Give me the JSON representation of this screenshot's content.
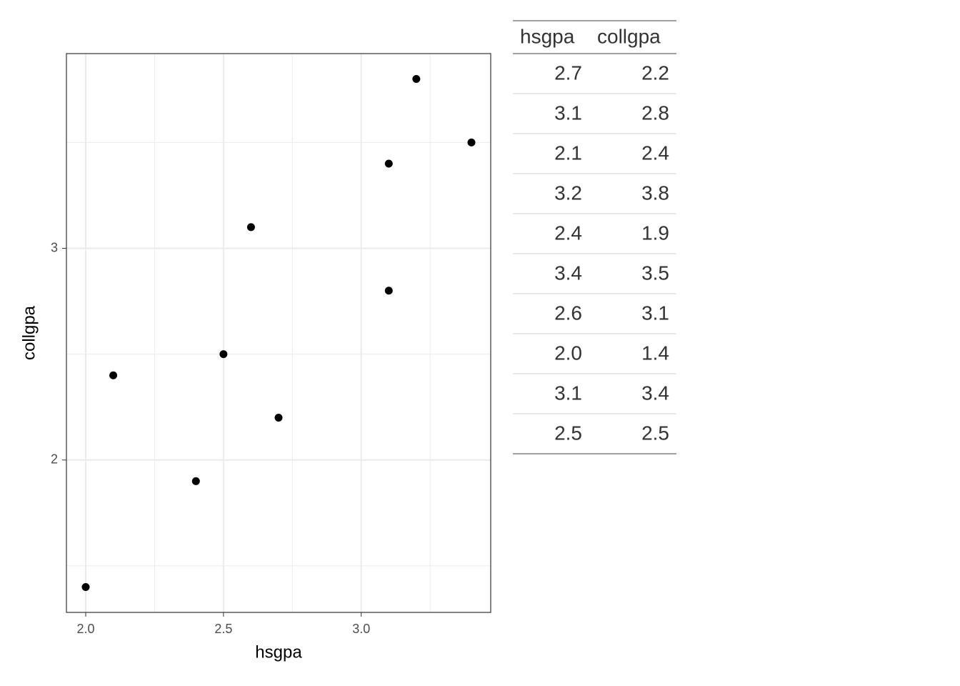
{
  "chart_data": {
    "type": "scatter",
    "x_label": "hsgpa",
    "y_label": "collgpa",
    "x": [
      2.7,
      3.1,
      2.1,
      3.2,
      2.4,
      3.4,
      2.6,
      2.0,
      3.1,
      2.5
    ],
    "y": [
      2.2,
      2.8,
      2.4,
      3.8,
      1.9,
      3.5,
      3.1,
      1.4,
      3.4,
      2.5
    ],
    "color": "#000000",
    "xlim": [
      1.93,
      3.47
    ],
    "ylim": [
      1.28,
      3.92
    ],
    "xticks": [
      {
        "value": 2,
        "label": "2.0"
      },
      {
        "value": 2.5,
        "label": "2.5"
      },
      {
        "value": 3,
        "label": "3.0"
      }
    ],
    "yticks": [
      2,
      3
    ],
    "grid": true
  },
  "table": {
    "columns": [
      "hsgpa",
      "collgpa"
    ],
    "rows": [
      [
        "2.7",
        "2.2"
      ],
      [
        "3.1",
        "2.8"
      ],
      [
        "2.1",
        "2.4"
      ],
      [
        "3.2",
        "3.8"
      ],
      [
        "2.4",
        "1.9"
      ],
      [
        "3.4",
        "3.5"
      ],
      [
        "2.6",
        "3.1"
      ],
      [
        "2.0",
        "1.4"
      ],
      [
        "3.1",
        "3.4"
      ],
      [
        "2.5",
        "2.5"
      ]
    ]
  }
}
